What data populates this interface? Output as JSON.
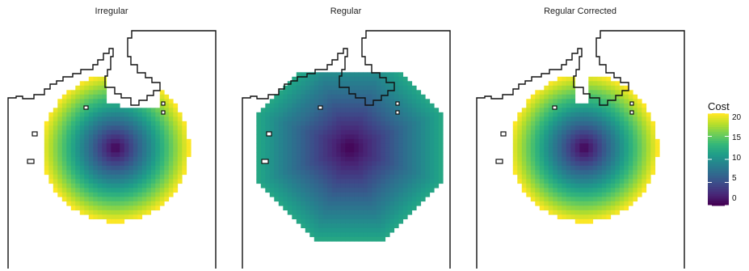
{
  "chart_data": {
    "type": "heatmap",
    "panels": [
      {
        "title": "Irregular",
        "center": [
          0.0,
          0.0
        ],
        "max_radius": 9.1,
        "cost_scale": 2.2,
        "cell_style": "fine",
        "note_region": "cost field limited to land-connected cells near the hub"
      },
      {
        "title": "Regular",
        "center": [
          0.0,
          0.0
        ],
        "max_radius": 11.3,
        "cost_scale": 1.05,
        "cell_style": "octagonal",
        "note_region": "includes inlet area north-east"
      },
      {
        "title": "Regular Corrected",
        "center": [
          0.0,
          0.0
        ],
        "max_radius": 9.1,
        "cost_scale": 2.2,
        "cell_style": "fine",
        "note_region": "inlet patch NE"
      }
    ],
    "legend": {
      "title": "Cost",
      "ticks": [
        "20",
        "15",
        "10",
        "5",
        "0"
      ],
      "tick_values": [
        20,
        15,
        10,
        5,
        0
      ],
      "range": [
        0,
        20
      ],
      "colormap": "viridis"
    },
    "grid": false
  },
  "colors": {
    "outline": "#111111",
    "background": "#ffffff",
    "viridis": [
      "#440154",
      "#482878",
      "#3e4989",
      "#31688e",
      "#26828e",
      "#1f9e89",
      "#35b779",
      "#6ece58",
      "#b5de2b",
      "#fde725"
    ]
  }
}
